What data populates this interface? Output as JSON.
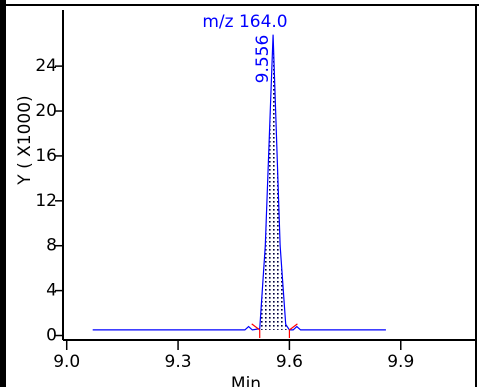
{
  "chart_data": {
    "type": "line",
    "title": "m/z 164.0",
    "xlabel": "Min",
    "ylabel": "Y ( X1000)",
    "x": [
      9.07,
      9.48,
      9.49,
      9.5,
      9.52,
      9.535,
      9.556,
      9.575,
      9.59,
      9.6,
      9.61,
      9.62,
      9.63,
      9.86
    ],
    "series": [
      {
        "name": "m/z 164.0",
        "color": "#0000ff",
        "values": [
          0.5,
          0.5,
          0.8,
          0.5,
          0.6,
          8,
          26.8,
          8,
          1,
          0.5,
          0.5,
          0.8,
          0.5,
          0.5
        ]
      }
    ],
    "annotations": [
      {
        "text": "9.556",
        "x": 9.556
      }
    ],
    "integration_range": [
      9.52,
      9.6
    ],
    "integration_color": "#ff0000",
    "xlim": [
      8.99,
      10.1
    ],
    "xticks": [
      {
        "value": 9,
        "label": "9.0"
      },
      9.3,
      9.6,
      9.9
    ],
    "ylim": [
      -0.4,
      29
    ],
    "yticks": [
      0,
      4,
      8,
      12,
      16,
      20,
      24
    ]
  }
}
